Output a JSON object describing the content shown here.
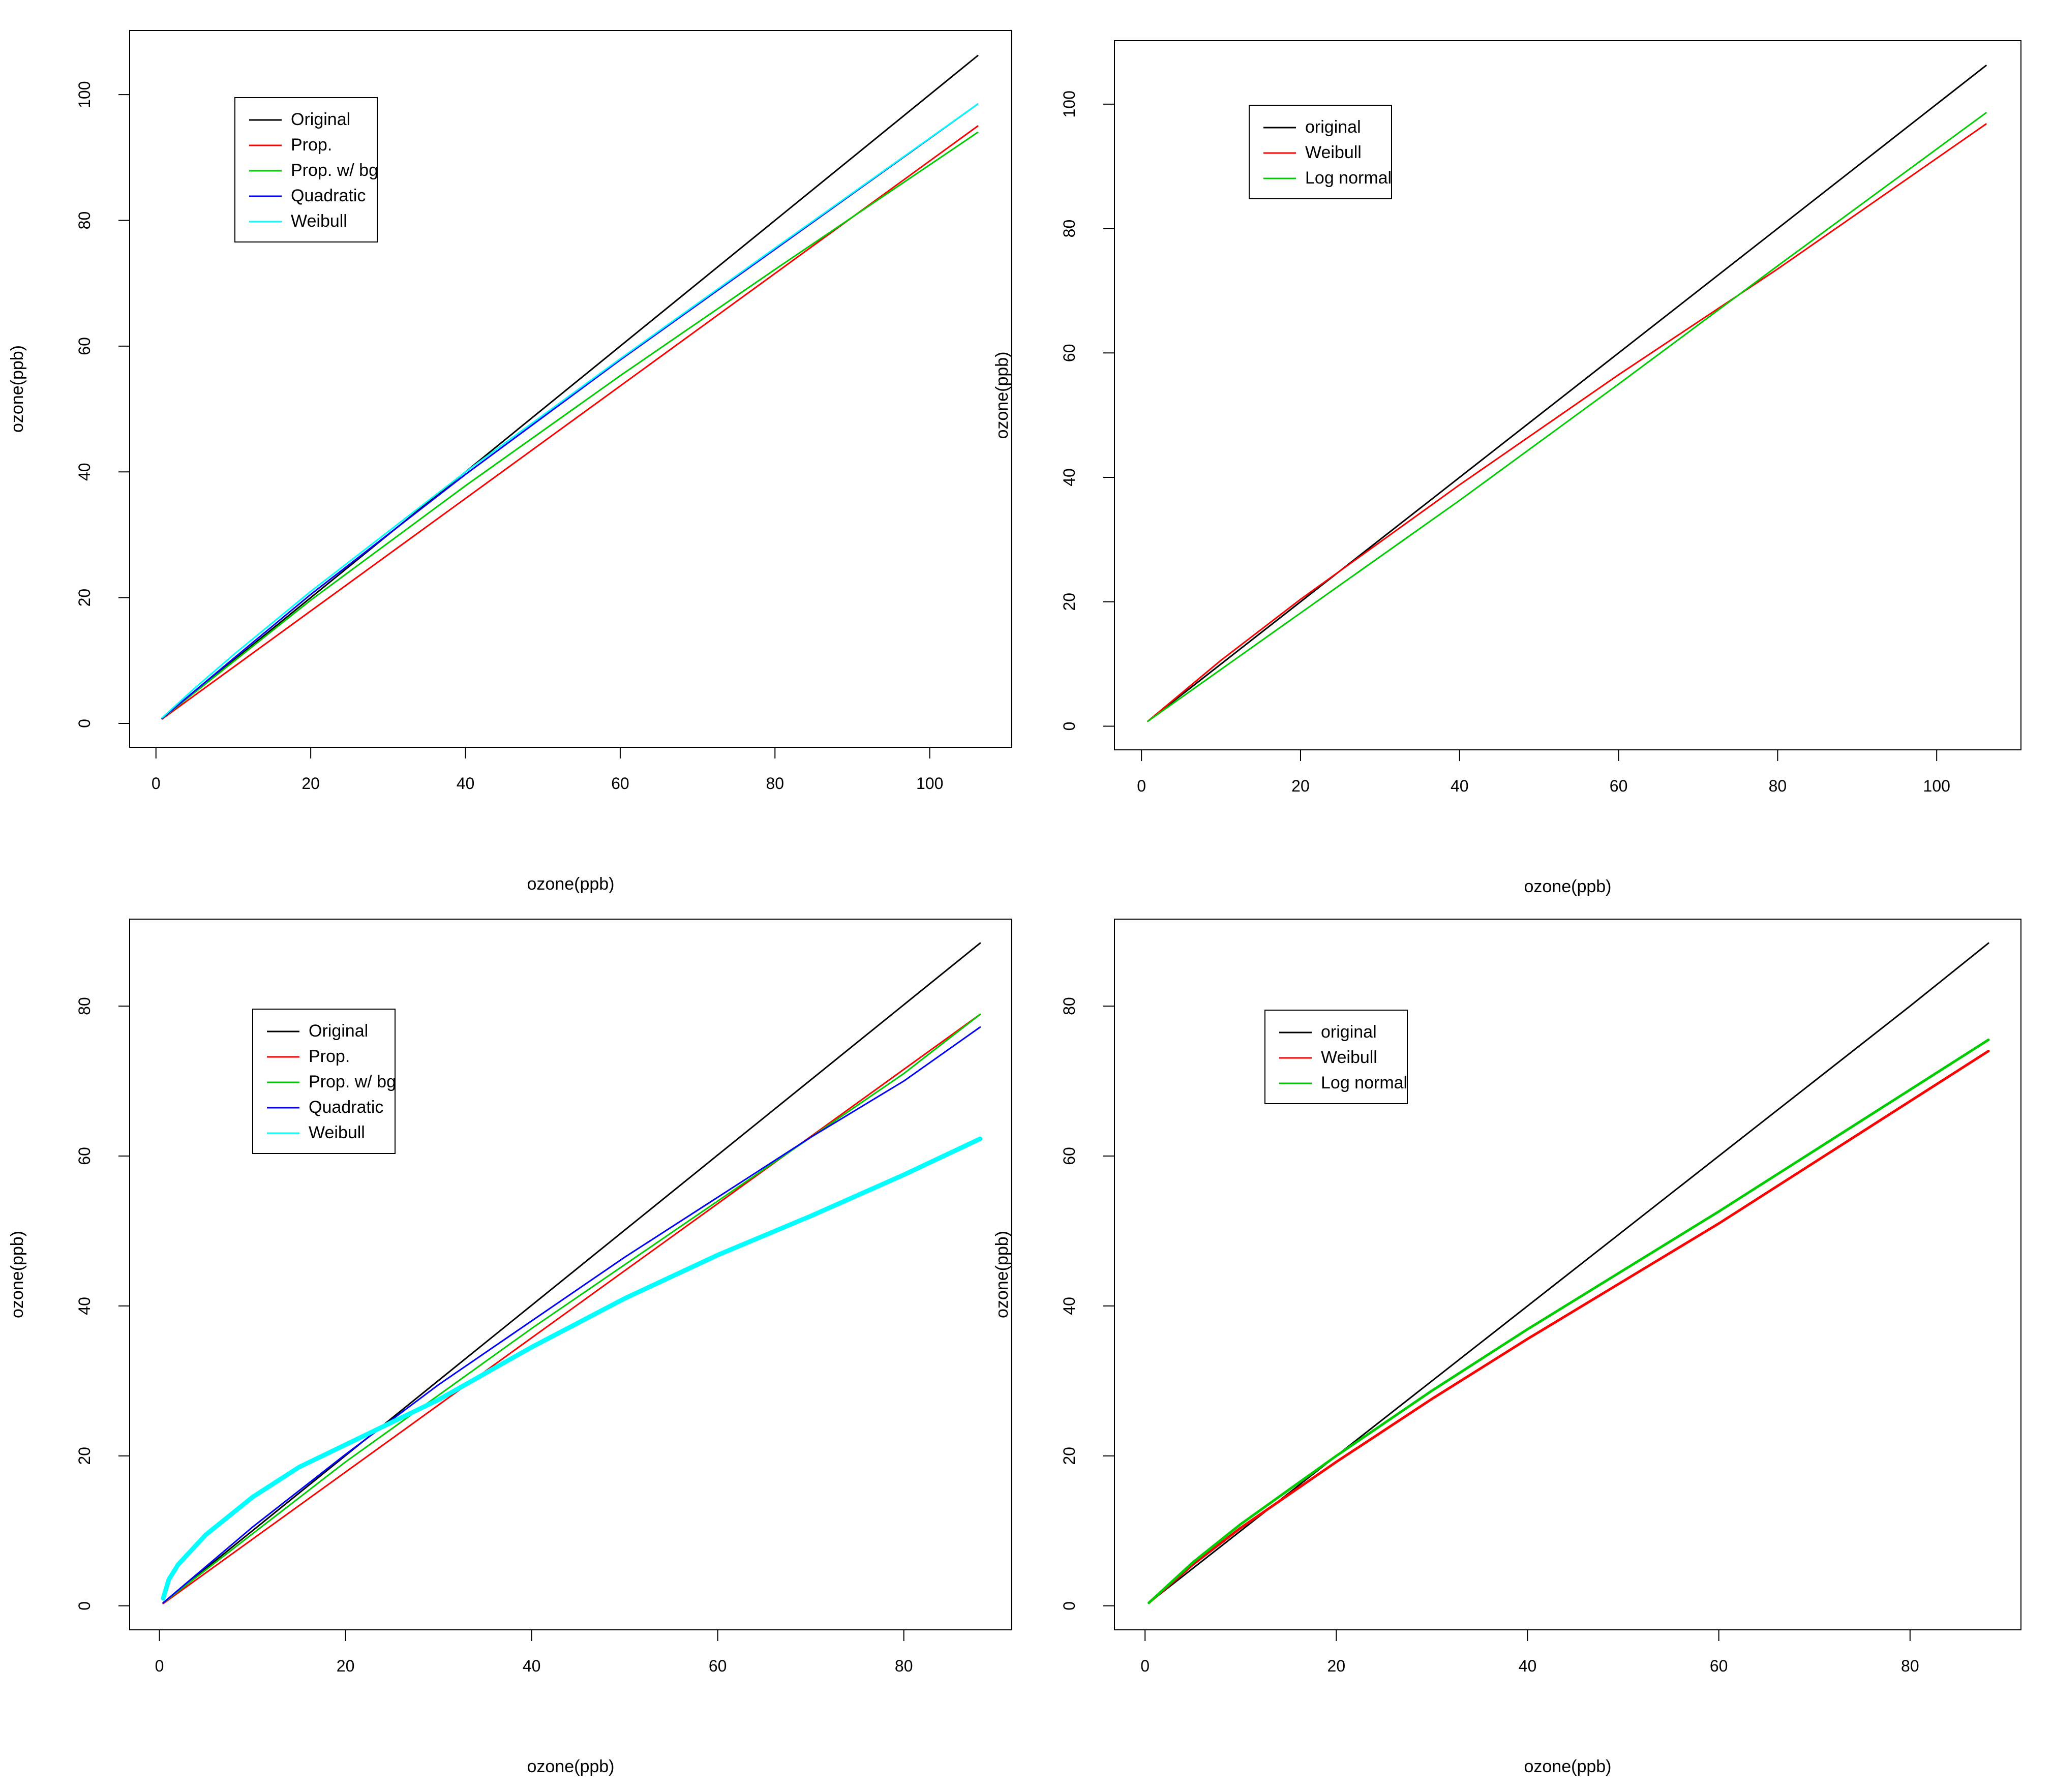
{
  "chart_data": [
    {
      "type": "line",
      "xlabel": "ozone(ppb)",
      "ylabel": "ozone(ppb)",
      "xlim": [
        -3.4,
        110.6
      ],
      "ylim": [
        -3.8,
        110.2
      ],
      "xticks": [
        0,
        20,
        40,
        60,
        80,
        100
      ],
      "yticks": [
        0,
        20,
        40,
        60,
        80,
        100
      ],
      "legend": "top-left",
      "series": [
        {
          "name": "Original",
          "color": "#000000",
          "x": [
            0.8,
            106.2
          ],
          "y": [
            0.8,
            106.2
          ]
        },
        {
          "name": "Prop.",
          "color": "#ff0000",
          "x": [
            0.8,
            106.2
          ],
          "y": [
            0.7,
            95.0
          ]
        },
        {
          "name": "Prop. w/ bg",
          "color": "#00cd00",
          "x": [
            0.8,
            20,
            40,
            60,
            80,
            106.2
          ],
          "y": [
            0.8,
            19.6,
            37.8,
            55.3,
            72.2,
            94.0
          ]
        },
        {
          "name": "Quadratic",
          "color": "#0000ff",
          "x": [
            0.8,
            10,
            20,
            40,
            60,
            80,
            106.2
          ],
          "y": [
            0.8,
            10.3,
            20.5,
            39.6,
            57.8,
            75.4,
            98.5
          ]
        },
        {
          "name": "Weibull",
          "color": "#00ffff",
          "x": [
            0.8,
            5,
            10,
            20,
            40,
            60,
            80,
            106.2
          ],
          "y": [
            0.9,
            5.6,
            10.9,
            21.0,
            40.0,
            58.0,
            75.6,
            98.5
          ]
        }
      ]
    },
    {
      "type": "line",
      "xlabel": "ozone(ppb)",
      "ylabel": "ozone(ppb)",
      "xlim": [
        -3.4,
        110.6
      ],
      "ylim": [
        -3.8,
        110.2
      ],
      "xticks": [
        0,
        20,
        40,
        60,
        80,
        100
      ],
      "yticks": [
        0,
        20,
        40,
        60,
        80,
        100
      ],
      "legend": "top-left",
      "series": [
        {
          "name": "original",
          "color": "#000000",
          "x": [
            0.8,
            106.2
          ],
          "y": [
            0.8,
            106.2
          ]
        },
        {
          "name": "Weibull",
          "color": "#ff0000",
          "x": [
            0.8,
            10,
            20,
            40,
            60,
            80,
            106.2
          ],
          "y": [
            0.8,
            10.6,
            20.4,
            38.8,
            56.5,
            73.5,
            96.8
          ]
        },
        {
          "name": "Log normal",
          "color": "#00cd00",
          "x": [
            0.8,
            20,
            40,
            60,
            80,
            106.2
          ],
          "y": [
            0.8,
            18.2,
            36.3,
            55.0,
            74.0,
            98.6
          ]
        }
      ]
    },
    {
      "type": "line",
      "xlabel": "ozone(ppb)",
      "ylabel": "ozone(ppb)",
      "xlim": [
        -3.2,
        91.6
      ],
      "ylim": [
        -3.2,
        91.6
      ],
      "xticks": [
        0,
        20,
        40,
        60,
        80
      ],
      "yticks": [
        0,
        20,
        40,
        60,
        80
      ],
      "legend": "top-left",
      "series": [
        {
          "name": "Original",
          "color": "#000000",
          "x": [
            0.4,
            88.2
          ],
          "y": [
            0.4,
            88.4
          ]
        },
        {
          "name": "Prop.",
          "color": "#ff0000",
          "x": [
            0.4,
            88.2
          ],
          "y": [
            0.3,
            78.9
          ]
        },
        {
          "name": "Prop. w/ bg",
          "color": "#00cd00",
          "x": [
            0.4,
            20,
            40,
            60,
            70,
            80,
            88.2
          ],
          "y": [
            0.4,
            19.2,
            37.0,
            54.0,
            62.5,
            71.0,
            78.9
          ]
        },
        {
          "name": "Quadratic",
          "color": "#0000ff",
          "x": [
            0.4,
            10,
            20,
            30,
            40,
            50,
            60,
            70,
            80,
            88.2
          ],
          "y": [
            0.4,
            10.5,
            20.2,
            29.5,
            38.0,
            46.5,
            54.5,
            62.5,
            70.0,
            77.2
          ]
        },
        {
          "name": "Weibull",
          "color": "#00ffff",
          "x": [
            0.4,
            1,
            2,
            5,
            10,
            15,
            20,
            30,
            40,
            50,
            60,
            70,
            80,
            88.2
          ],
          "y": [
            1.0,
            3.5,
            5.5,
            9.5,
            14.5,
            18.5,
            21.5,
            27.5,
            34.5,
            41.0,
            46.8,
            52.0,
            57.5,
            62.3
          ]
        }
      ]
    },
    {
      "type": "line",
      "xlabel": "ozone(ppb)",
      "ylabel": "ozone(ppb)",
      "xlim": [
        -3.2,
        91.6
      ],
      "ylim": [
        -3.2,
        91.6
      ],
      "xticks": [
        0,
        20,
        40,
        60,
        80
      ],
      "yticks": [
        0,
        20,
        40,
        60,
        80
      ],
      "legend": "top-left",
      "series": [
        {
          "name": "original",
          "color": "#000000",
          "x": [
            0.4,
            80,
            88.2
          ],
          "y": [
            0.4,
            80,
            88.4
          ]
        },
        {
          "name": "Weibull",
          "color": "#ff0000",
          "x": [
            0.4,
            5,
            10,
            20,
            30,
            40,
            60,
            88.2
          ],
          "y": [
            0.4,
            5.5,
            10.4,
            19.2,
            27.6,
            35.6,
            51.0,
            74.0
          ]
        },
        {
          "name": "Log normal",
          "color": "#00cd00",
          "x": [
            0.4,
            5,
            10,
            20,
            30,
            40,
            60,
            88.2
          ],
          "y": [
            0.4,
            5.8,
            10.9,
            20.0,
            28.7,
            36.9,
            52.6,
            75.5
          ]
        }
      ]
    }
  ]
}
